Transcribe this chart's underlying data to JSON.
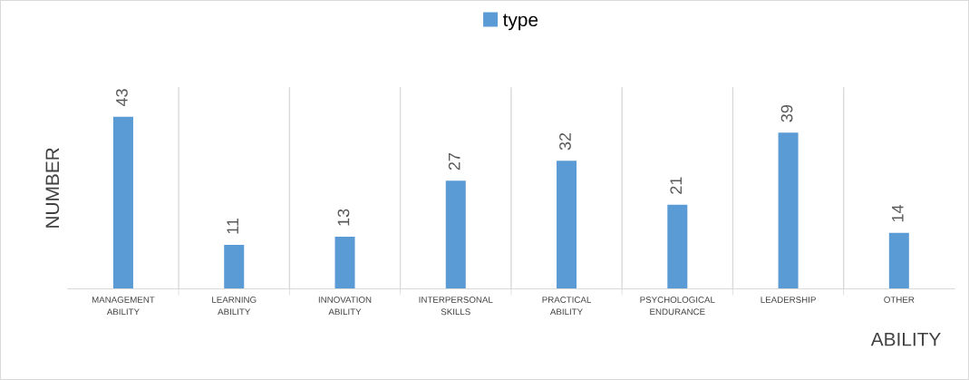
{
  "chart_data": {
    "type": "bar",
    "xlabel": "ABILITY",
    "ylabel": "NUMBER",
    "categories": [
      "MANAGEMENT ABILITY",
      "LEARNING ABILITY",
      "INNOVATION ABILITY",
      "INTERPERSONAL SKILLS",
      "PRACTICAL ABILITY",
      "PSYCHOLOGICAL ENDURANCE",
      "LEADERSHIP",
      "OTHER"
    ],
    "series": [
      {
        "name": "type",
        "color": "#5b9bd5",
        "values": [
          43,
          11,
          13,
          27,
          32,
          21,
          39,
          14
        ]
      }
    ],
    "data_labels": true,
    "legend": "top",
    "grid": "x",
    "tick_labels": "x"
  }
}
